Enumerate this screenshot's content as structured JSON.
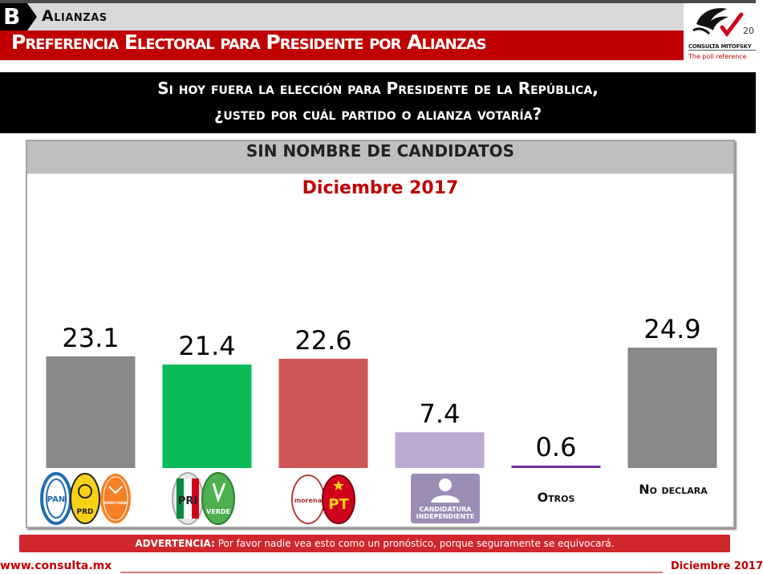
{
  "header": {
    "section_letter": "B",
    "section_label": "Alianzas",
    "title": "Preferencia Electoral para Presidente por Alianzas",
    "logo": {
      "icon": "consulta-mitofsky-logo-icon",
      "name": "CONSULTA MITOFSKY",
      "tagline": "The poll reference",
      "badge": "20"
    }
  },
  "question": {
    "line1": "Si hoy fuera la elección para Presidente de la República,",
    "line2": "¿usted por cuál partido o alianza votaría?"
  },
  "panel": {
    "heading": "SIN NOMBRE DE CANDIDATOS"
  },
  "chart_data": {
    "type": "bar",
    "title": "Diciembre 2017",
    "xlabel": "",
    "ylabel": "",
    "ylim": [
      0,
      25
    ],
    "grid": false,
    "legend": "none",
    "categories": [
      "PAN-PRD-MC",
      "PRI-Verde",
      "Morena-PT",
      "Candidatura Independiente",
      "Otros",
      "No declara"
    ],
    "values": [
      23.1,
      21.4,
      22.6,
      7.4,
      0.6,
      24.9
    ],
    "value_labels": [
      "23.1",
      "21.4",
      "22.6",
      "7.4",
      "0.6",
      "24.9"
    ],
    "colors": [
      "#898989",
      "#0abb57",
      "#cd5855",
      "#bcaad4",
      "#7030a0",
      "#898989"
    ],
    "category_logos": [
      [
        "PAN",
        "PRD",
        "MOVIMIENTO CIUDADANO"
      ],
      [
        "PRI",
        "VERDE"
      ],
      [
        "morena",
        "PT"
      ],
      [
        "CANDIDATURA INDEPENDIENTE"
      ],
      [],
      []
    ],
    "category_text": [
      "",
      "",
      "",
      "",
      "Otros",
      "No declara"
    ]
  },
  "footer": {
    "warning_bold": "ADVERTENCIA:",
    "warning_text": " Por favor nadie vea esto como un pronóstico, porque seguramente se equivocará.",
    "website": "www.consulta.mx",
    "date": "Diciembre 2017"
  },
  "colors": {
    "brand_red": "#c00000",
    "warning_red": "#d0272d"
  }
}
